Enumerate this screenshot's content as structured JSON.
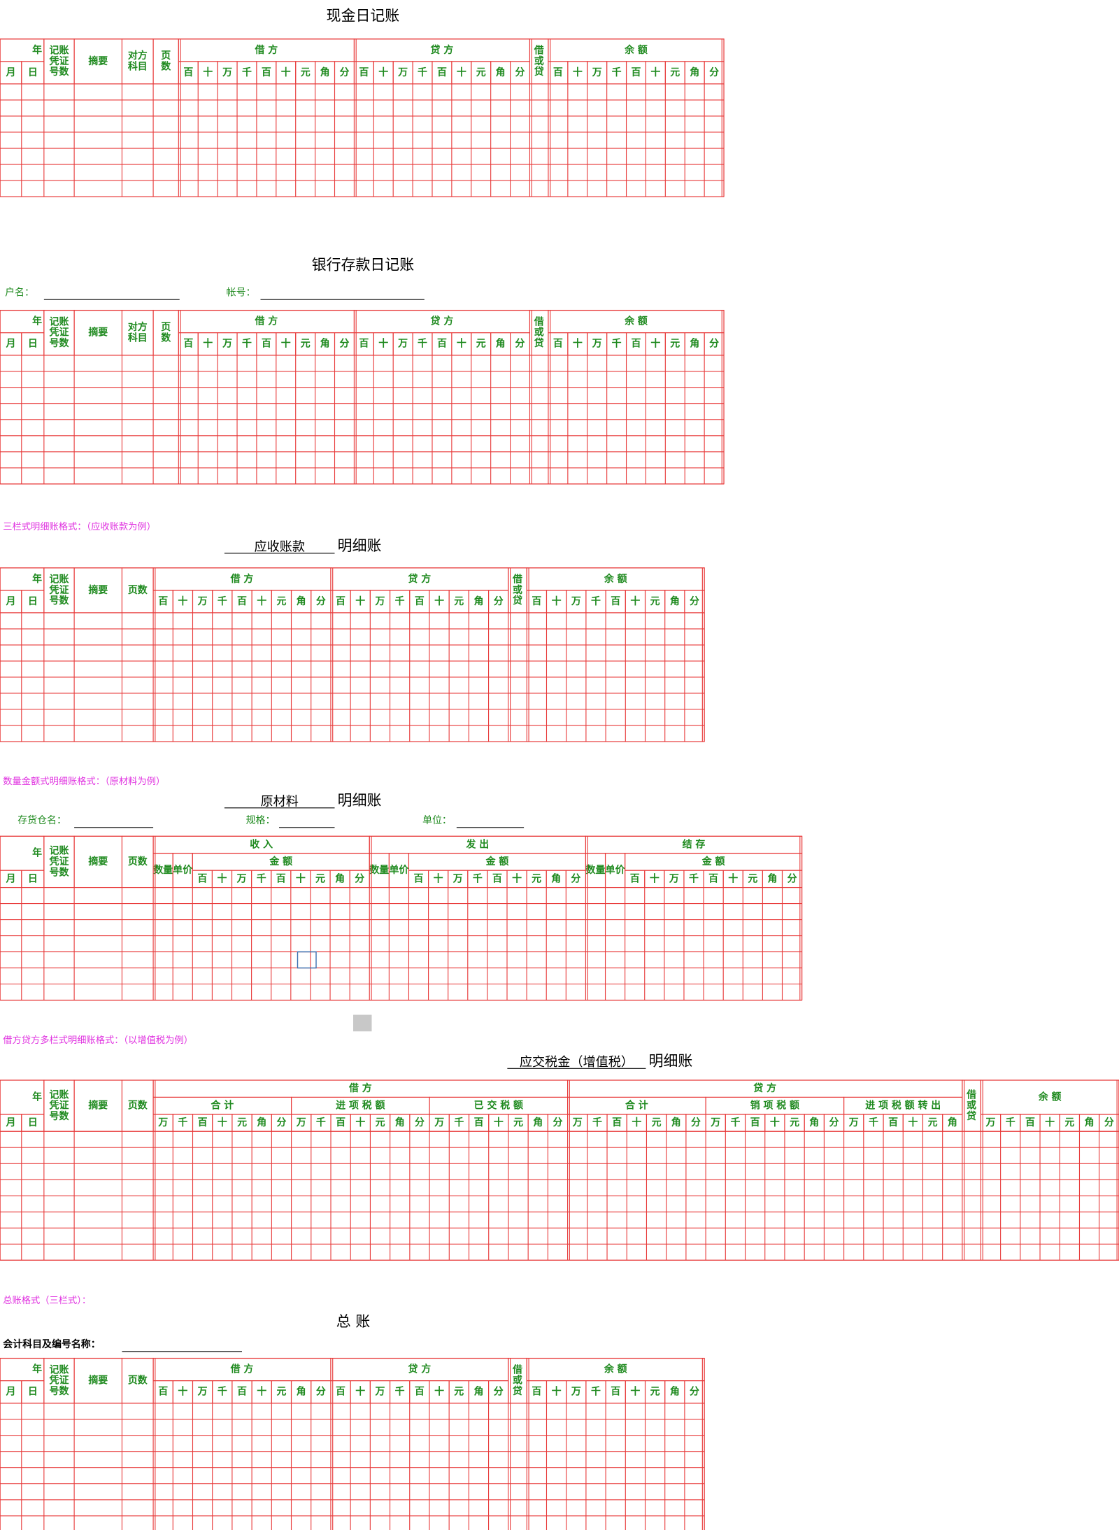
{
  "sections": [
    {
      "title": "现金日记账",
      "table": {
        "year": "年",
        "month": "月",
        "day": "日",
        "voucher": "记账凭证号数",
        "summary": "摘要",
        "account": "对方科目",
        "page": "页数",
        "groups": [
          {
            "label": "借 方",
            "units": [
              "百",
              "十",
              "万",
              "千",
              "百",
              "十",
              "元",
              "角",
              "分"
            ]
          },
          {
            "label": "贷 方",
            "units": [
              "百",
              "十",
              "万",
              "千",
              "百",
              "十",
              "元",
              "角",
              "分"
            ]
          }
        ],
        "dc": "借或贷",
        "balance": {
          "label": "余 额",
          "units": [
            "百",
            "十",
            "万",
            "千",
            "百",
            "十",
            "元",
            "角",
            "分"
          ]
        }
      }
    },
    {
      "title": "银行存款日记账",
      "fields": [
        "户名：",
        "帐号："
      ],
      "table": {
        "year": "年",
        "month": "月",
        "day": "日",
        "voucher": "记账凭证号数",
        "summary": "摘要",
        "account": "对方科目",
        "page": "页数",
        "groups": [
          {
            "label": "借 方",
            "units": [
              "百",
              "十",
              "万",
              "千",
              "百",
              "十",
              "元",
              "角",
              "分"
            ]
          },
          {
            "label": "贷 方",
            "units": [
              "百",
              "十",
              "万",
              "千",
              "百",
              "十",
              "元",
              "角",
              "分"
            ]
          }
        ],
        "dc": "借或贷",
        "balance": {
          "label": "余 额",
          "units": [
            "百",
            "十",
            "万",
            "千",
            "百",
            "十",
            "元",
            "角",
            "分"
          ]
        }
      }
    },
    {
      "note": "三栏式明细账格式：（应收账款为例）",
      "subject": "应收账款",
      "suffix": "明细账",
      "table": {
        "year": "年",
        "month": "月",
        "day": "日",
        "voucher": "记账凭证号数",
        "summary": "摘要",
        "page": "页数",
        "groups": [
          {
            "label": "借 方",
            "units": [
              "百",
              "十",
              "万",
              "千",
              "百",
              "十",
              "元",
              "角",
              "分"
            ]
          },
          {
            "label": "贷 方",
            "units": [
              "百",
              "十",
              "万",
              "千",
              "百",
              "十",
              "元",
              "角",
              "分"
            ]
          }
        ],
        "dc": "借或贷",
        "balance": {
          "label": "余 额",
          "units": [
            "百",
            "十",
            "万",
            "千",
            "百",
            "十",
            "元",
            "角",
            "分"
          ]
        }
      }
    },
    {
      "note": "数量金额式明细账格式：（原材料为例）",
      "subject": "原材料",
      "suffix": "明细账",
      "fields": [
        "存货仓名：",
        "规格：",
        "单位："
      ],
      "table": {
        "year": "年",
        "month": "月",
        "day": "日",
        "voucher": "记账凭证号数",
        "summary": "摘要",
        "page": "页数",
        "groups": [
          {
            "label": "收 入",
            "qty": "数量",
            "price": "单价",
            "amount": "金 额",
            "units": [
              "百",
              "十",
              "万",
              "千",
              "百",
              "十",
              "元",
              "角",
              "分"
            ]
          },
          {
            "label": "发 出",
            "qty": "数量",
            "price": "单价",
            "amount": "金 额",
            "units": [
              "百",
              "十",
              "万",
              "千",
              "百",
              "十",
              "元",
              "角",
              "分"
            ]
          },
          {
            "label": "结 存",
            "qty": "数量",
            "price": "单价",
            "amount": "金 额",
            "units": [
              "百",
              "十",
              "万",
              "千",
              "百",
              "十",
              "元",
              "角",
              "分"
            ]
          }
        ]
      }
    },
    {
      "note": "借方贷方多栏式明细账格式：（以增值税为例）",
      "subject": "应交税金（增值税）",
      "suffix": "明细账",
      "table": {
        "year": "年",
        "month": "月",
        "day": "日",
        "voucher": "记账凭证号数",
        "summary": "摘要",
        "page": "页数",
        "groups": [
          {
            "label": "借 方",
            "subgroups": [
              {
                "label": "合 计",
                "units": [
                  "万",
                  "千",
                  "百",
                  "十",
                  "元",
                  "角",
                  "分"
                ]
              },
              {
                "label": "进 项 税 额",
                "units": [
                  "万",
                  "千",
                  "百",
                  "十",
                  "元",
                  "角",
                  "分"
                ]
              },
              {
                "label": "已 交 税 额",
                "units": [
                  "万",
                  "千",
                  "百",
                  "十",
                  "元",
                  "角",
                  "分"
                ]
              }
            ]
          },
          {
            "label": "贷 方",
            "subgroups": [
              {
                "label": "合 计",
                "units": [
                  "万",
                  "千",
                  "百",
                  "十",
                  "元",
                  "角",
                  "分"
                ]
              },
              {
                "label": "销 项 税 额",
                "units": [
                  "万",
                  "千",
                  "百",
                  "十",
                  "元",
                  "角",
                  "分"
                ]
              },
              {
                "label": "进 项 税 额 转 出",
                "units": [
                  "万",
                  "千",
                  "百",
                  "十",
                  "元",
                  "角"
                ]
              }
            ]
          }
        ],
        "dc": "借或贷",
        "balance": {
          "label": "余 额",
          "units": [
            "万",
            "千",
            "百",
            "十",
            "元",
            "角",
            "分"
          ]
        }
      }
    },
    {
      "note": "总账格式（三栏式）：",
      "title": "总 账",
      "fields": [
        "会计科目及编号名称："
      ],
      "table": {
        "year": "年",
        "month": "月",
        "day": "日",
        "voucher": "记账凭证号数",
        "summary": "摘要",
        "page": "页数",
        "groups": [
          {
            "label": "借 方",
            "units": [
              "百",
              "十",
              "万",
              "千",
              "百",
              "十",
              "元",
              "角",
              "分"
            ]
          },
          {
            "label": "贷 方",
            "units": [
              "百",
              "十",
              "万",
              "千",
              "百",
              "十",
              "元",
              "角",
              "分"
            ]
          }
        ],
        "dc": "借或贷",
        "balance": {
          "label": "余 额",
          "units": [
            "百",
            "十",
            "万",
            "千",
            "百",
            "十",
            "元",
            "角",
            "分"
          ]
        }
      }
    }
  ]
}
